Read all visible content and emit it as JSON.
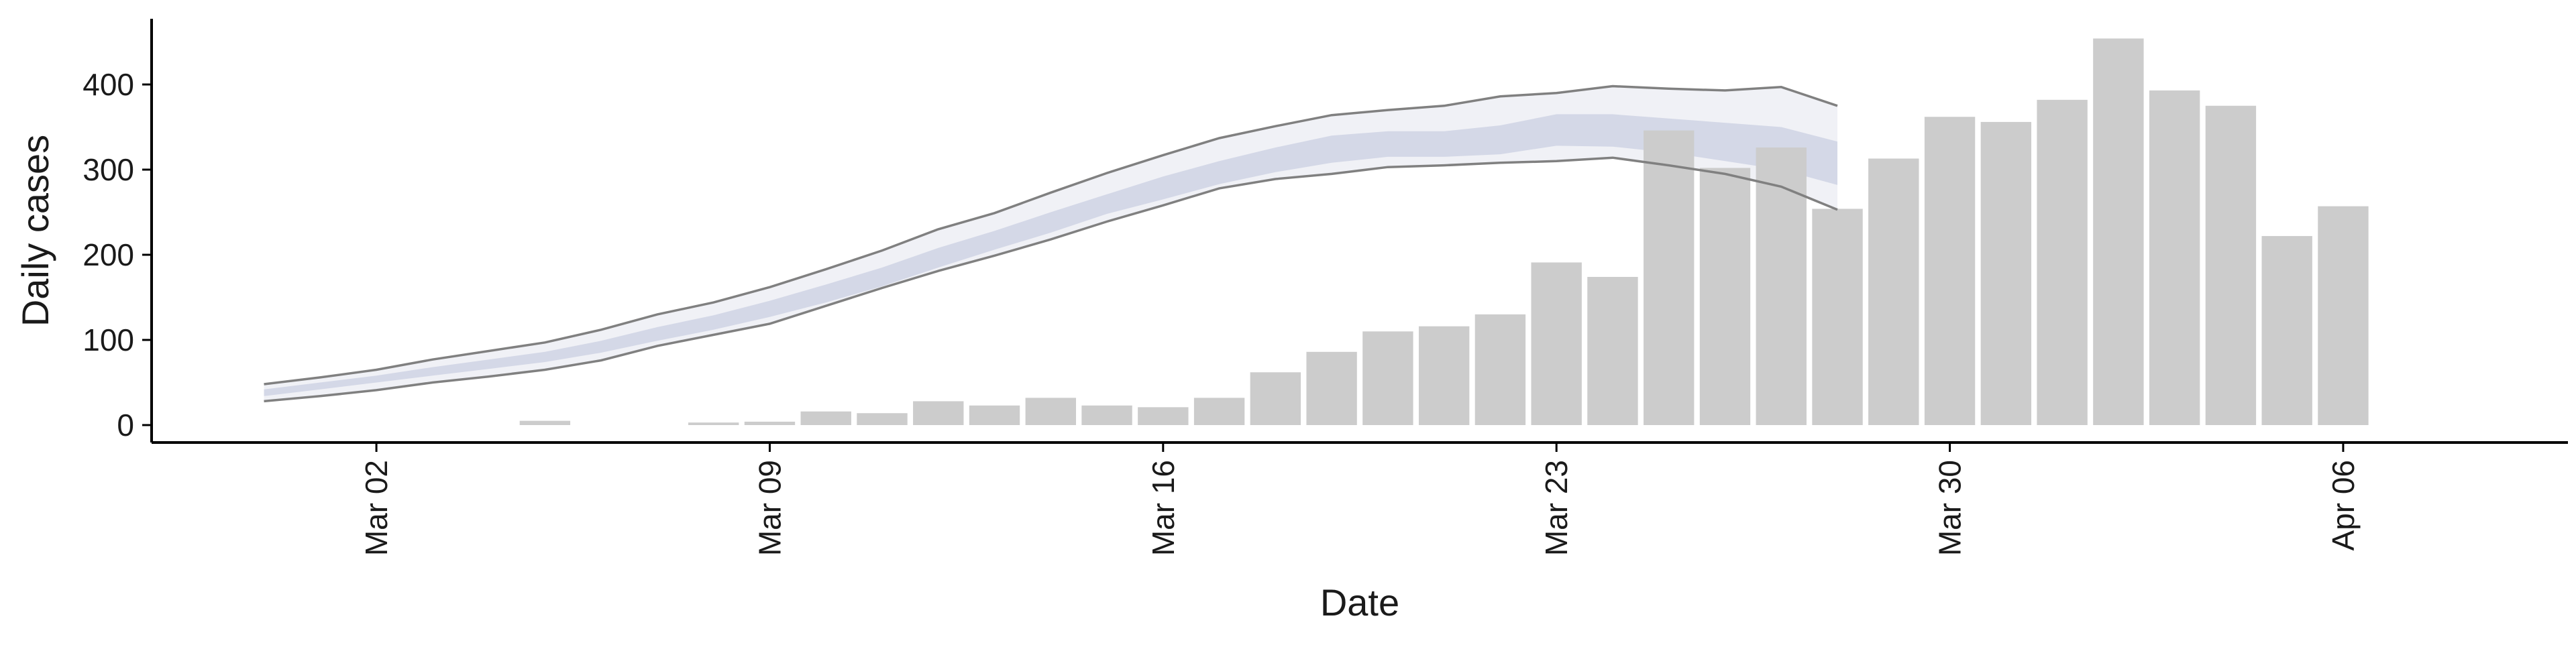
{
  "chart_data": {
    "type": "bar",
    "xlabel": "Date",
    "ylabel": "Daily cases",
    "ylim": [
      0,
      450
    ],
    "y_ticks": [
      0,
      100,
      200,
      300,
      400
    ],
    "x_ticks": [
      {
        "date": "2020-03-02",
        "label": "Mar 02"
      },
      {
        "date": "2020-03-09",
        "label": "Mar 09"
      },
      {
        "date": "2020-03-16",
        "label": "Mar 16"
      },
      {
        "date": "2020-03-23",
        "label": "Mar 23"
      },
      {
        "date": "2020-03-30",
        "label": "Mar 30"
      },
      {
        "date": "2020-04-06",
        "label": "Apr 06"
      }
    ],
    "x_range": [
      "2020-02-27",
      "2020-04-10"
    ],
    "grid": false,
    "bar_color": "#cccccc",
    "line_color": "#808080",
    "band_outer_color": "#eeeff5",
    "band_inner_color": "#cfd3e4",
    "bars": {
      "dates": [
        "2020-03-05",
        "2020-03-06",
        "2020-03-07",
        "2020-03-08",
        "2020-03-09",
        "2020-03-10",
        "2020-03-11",
        "2020-03-12",
        "2020-03-13",
        "2020-03-14",
        "2020-03-15",
        "2020-03-16",
        "2020-03-17",
        "2020-03-18",
        "2020-03-19",
        "2020-03-20",
        "2020-03-21",
        "2020-03-22",
        "2020-03-23",
        "2020-03-24",
        "2020-03-25",
        "2020-03-26",
        "2020-03-27",
        "2020-03-28",
        "2020-03-29",
        "2020-03-30",
        "2020-03-31",
        "2020-04-01",
        "2020-04-02",
        "2020-04-03",
        "2020-04-04",
        "2020-04-05",
        "2020-04-06",
        "2020-04-07"
      ],
      "values": [
        5,
        0,
        0,
        3,
        4,
        16,
        14,
        28,
        23,
        32,
        23,
        21,
        32,
        62,
        86,
        110,
        116,
        130,
        191,
        174,
        346,
        302,
        326,
        254,
        313,
        362,
        356,
        382,
        454,
        393,
        375,
        222,
        257,
        0
      ]
    },
    "estimate": {
      "dates": [
        "2020-02-29",
        "2020-03-01",
        "2020-03-02",
        "2020-03-03",
        "2020-03-04",
        "2020-03-05",
        "2020-03-06",
        "2020-03-07",
        "2020-03-08",
        "2020-03-09",
        "2020-03-10",
        "2020-03-11",
        "2020-03-12",
        "2020-03-13",
        "2020-03-14",
        "2020-03-15",
        "2020-03-16",
        "2020-03-17",
        "2020-03-18",
        "2020-03-19",
        "2020-03-20",
        "2020-03-21",
        "2020-03-22",
        "2020-03-23",
        "2020-03-24",
        "2020-03-25",
        "2020-03-26",
        "2020-03-27",
        "2020-03-28",
        "2020-03-29"
      ],
      "upper": [
        48,
        56,
        65,
        77,
        87,
        97,
        112,
        130,
        144,
        162,
        183,
        205,
        230,
        249,
        273,
        296,
        317,
        337,
        351,
        364,
        370,
        375,
        386,
        390,
        398,
        395,
        393,
        397,
        375,
        null
      ],
      "inner_upper": [
        42,
        50,
        58,
        68,
        77,
        86,
        99,
        115,
        129,
        146,
        165,
        185,
        208,
        228,
        250,
        271,
        292,
        310,
        326,
        340,
        345,
        345,
        352,
        365,
        365,
        360,
        355,
        350,
        333,
        null
      ],
      "inner_lower": [
        34,
        42,
        50,
        58,
        66,
        74,
        85,
        99,
        112,
        127,
        144,
        163,
        185,
        206,
        226,
        248,
        265,
        283,
        297,
        308,
        315,
        315,
        318,
        328,
        327,
        320,
        310,
        300,
        282,
        null
      ],
      "lower": [
        28,
        34,
        41,
        50,
        57,
        65,
        76,
        93,
        106,
        119,
        140,
        161,
        181,
        199,
        218,
        239,
        258,
        278,
        289,
        295,
        303,
        305,
        308,
        310,
        314,
        305,
        295,
        280,
        253,
        null
      ]
    }
  }
}
